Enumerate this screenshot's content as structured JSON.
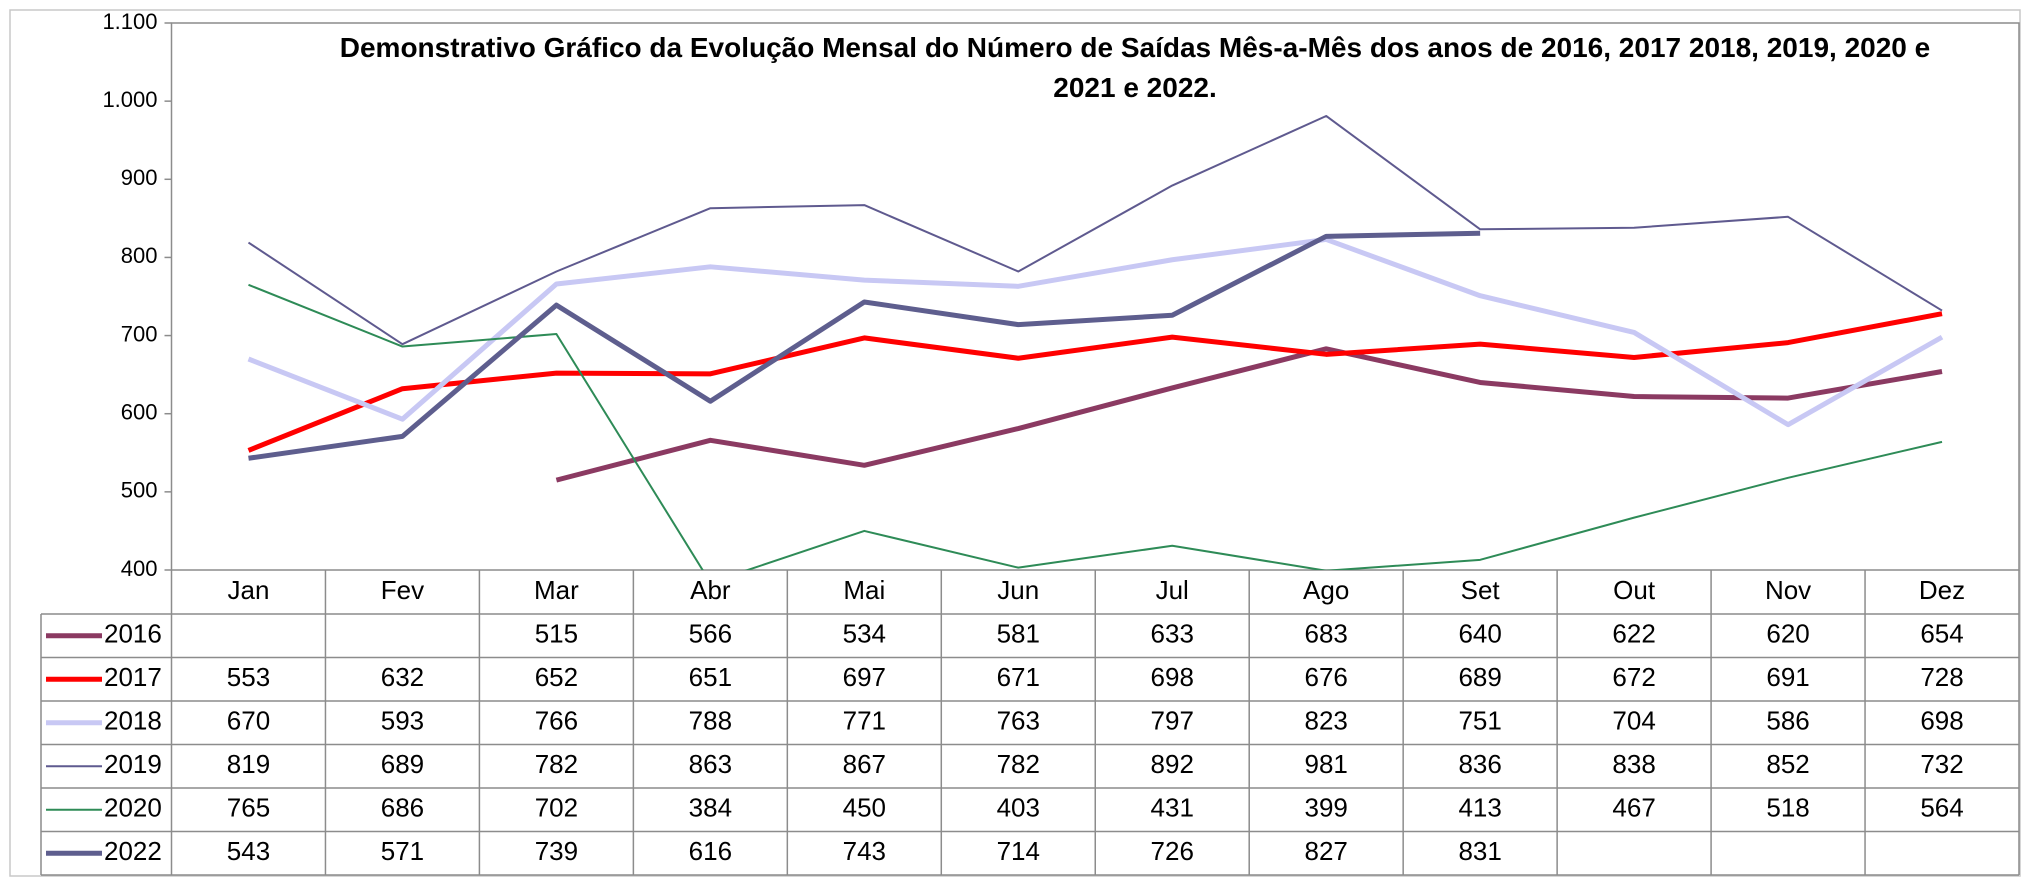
{
  "chart_data": {
    "type": "line",
    "title": "Demonstrativo Gráfico da Evolução Mensal do Número de Saídas Mês-a-Mês dos anos de  2016, 2017 2018, 2019, 2020 e 2021 e 2022.",
    "categories": [
      "Jan",
      "Fev",
      "Mar",
      "Abr",
      "Mai",
      "Jun",
      "Jul",
      "Ago",
      "Set",
      "Out",
      "Nov",
      "Dez"
    ],
    "series": [
      {
        "name": "2016",
        "color": "#8b3a62",
        "line_width": 5,
        "values": [
          null,
          null,
          515,
          566,
          534,
          581,
          633,
          683,
          640,
          622,
          620,
          654
        ]
      },
      {
        "name": "2017",
        "color": "#ff0000",
        "line_width": 5,
        "values": [
          553,
          632,
          652,
          651,
          697,
          671,
          698,
          676,
          689,
          672,
          691,
          728
        ]
      },
      {
        "name": "2018",
        "color": "#c8c8f4",
        "line_width": 5,
        "values": [
          670,
          593,
          766,
          788,
          771,
          763,
          797,
          823,
          751,
          704,
          586,
          698
        ]
      },
      {
        "name": "2019",
        "color": "#5f5a8f",
        "line_width": 2,
        "values": [
          819,
          689,
          782,
          863,
          867,
          782,
          892,
          981,
          836,
          838,
          852,
          732
        ]
      },
      {
        "name": "2020",
        "color": "#2e8b57",
        "line_width": 2,
        "values": [
          765,
          686,
          702,
          384,
          450,
          403,
          431,
          399,
          413,
          467,
          518,
          564
        ]
      },
      {
        "name": "2022",
        "color": "#5e5e8e",
        "line_width": 5,
        "values": [
          543,
          571,
          739,
          616,
          743,
          714,
          726,
          827,
          831,
          null,
          null,
          null
        ]
      }
    ],
    "ylim": [
      400,
      1100
    ],
    "yticks": [
      400,
      500,
      600,
      700,
      800,
      900,
      {
        "value": 1000,
        "label": "1.000"
      },
      {
        "value": 1100,
        "label": "1.100"
      }
    ],
    "grid": false
  }
}
